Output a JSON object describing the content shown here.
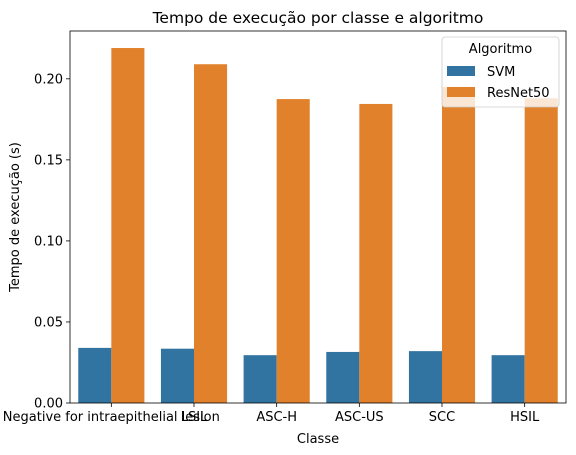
{
  "chart_data": {
    "type": "bar",
    "title": "Tempo de execução por classe e algoritmo",
    "xlabel": "Classe",
    "ylabel": "Tempo de execução (s)",
    "categories": [
      "Negative for intraepithelial lesion",
      "LSIL",
      "ASC-H",
      "ASC-US",
      "SCC",
      "HSIL"
    ],
    "series": [
      {
        "name": "SVM",
        "color": "#3274a1",
        "values": [
          0.034,
          0.0335,
          0.0295,
          0.0315,
          0.032,
          0.0295
        ]
      },
      {
        "name": "ResNet50",
        "color": "#e1812c",
        "values": [
          0.219,
          0.209,
          0.1875,
          0.1845,
          0.195,
          0.188
        ]
      }
    ],
    "ylim": [
      0,
      0.2295
    ],
    "yticks": [
      "0.00",
      "0.05",
      "0.10",
      "0.15",
      "0.20"
    ],
    "legend": {
      "title": "Algoritmo",
      "placement": "top-right"
    },
    "grid": false
  }
}
